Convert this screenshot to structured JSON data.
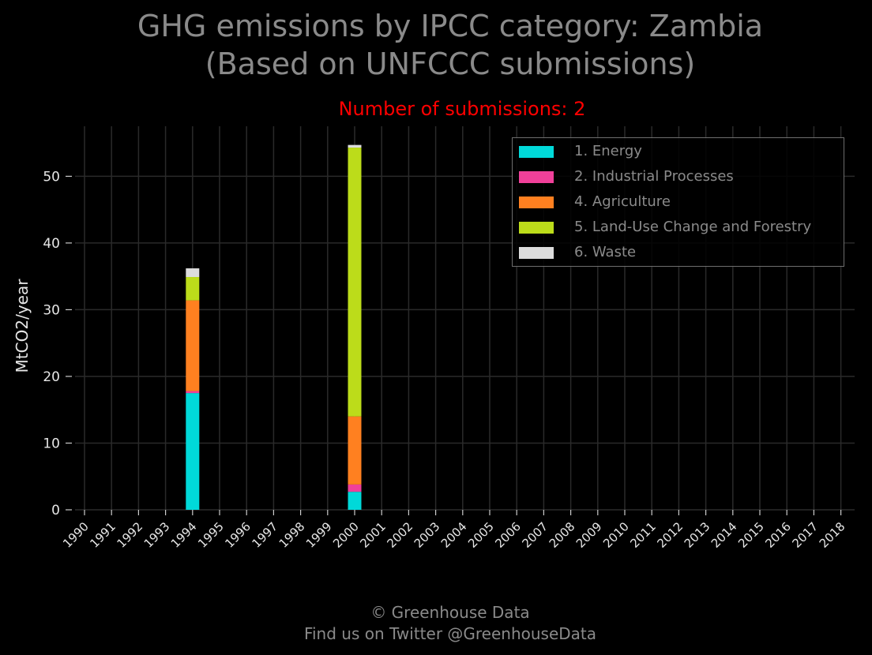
{
  "title_line1": "GHG emissions by IPCC category: Zambia",
  "title_line2": "(Based on UNFCCC submissions)",
  "subtitle": "Number of submissions: 2",
  "footer_line1": "© Greenhouse Data",
  "footer_line2": "Find us on Twitter @GreenhouseData",
  "chart_data": {
    "type": "bar",
    "stacked": true,
    "ylabel": "MtCO2/year",
    "xlabel": "",
    "ylim": [
      0,
      57.5
    ],
    "yticks": [
      0,
      10,
      20,
      30,
      40,
      50
    ],
    "grid": true,
    "legend_position": "top-right",
    "categories": [
      "1990",
      "1991",
      "1992",
      "1993",
      "1994",
      "1995",
      "1996",
      "1997",
      "1998",
      "1999",
      "2000",
      "2001",
      "2002",
      "2003",
      "2004",
      "2005",
      "2006",
      "2007",
      "2008",
      "2009",
      "2010",
      "2011",
      "2012",
      "2013",
      "2014",
      "2015",
      "2016",
      "2017",
      "2018"
    ],
    "series": [
      {
        "name": "1. Energy",
        "color": "#00d9d9",
        "values": [
          0,
          0,
          0,
          0,
          17.5,
          0,
          0,
          0,
          0,
          0,
          2.7,
          0,
          0,
          0,
          0,
          0,
          0,
          0,
          0,
          0,
          0,
          0,
          0,
          0,
          0,
          0,
          0,
          0,
          0
        ]
      },
      {
        "name": "2. Industrial Processes",
        "color": "#f0409a",
        "values": [
          0,
          0,
          0,
          0,
          0.3,
          0,
          0,
          0,
          0,
          0,
          1.1,
          0,
          0,
          0,
          0,
          0,
          0,
          0,
          0,
          0,
          0,
          0,
          0,
          0,
          0,
          0,
          0,
          0,
          0
        ]
      },
      {
        "name": "4. Agriculture",
        "color": "#ff8020",
        "values": [
          0,
          0,
          0,
          0,
          13.6,
          0,
          0,
          0,
          0,
          0,
          10.2,
          0,
          0,
          0,
          0,
          0,
          0,
          0,
          0,
          0,
          0,
          0,
          0,
          0,
          0,
          0,
          0,
          0,
          0
        ]
      },
      {
        "name": "5. Land-Use Change and Forestry",
        "color": "#bcdc1a",
        "values": [
          0,
          0,
          0,
          0,
          3.5,
          0,
          0,
          0,
          0,
          0,
          40.3,
          0,
          0,
          0,
          0,
          0,
          0,
          0,
          0,
          0,
          0,
          0,
          0,
          0,
          0,
          0,
          0,
          0,
          0
        ]
      },
      {
        "name": "6. Waste",
        "color": "#dcdcdc",
        "values": [
          0,
          0,
          0,
          0,
          1.3,
          0,
          0,
          0,
          0,
          0,
          0.4,
          0,
          0,
          0,
          0,
          0,
          0,
          0,
          0,
          0,
          0,
          0,
          0,
          0,
          0,
          0,
          0,
          0,
          0
        ]
      }
    ]
  }
}
